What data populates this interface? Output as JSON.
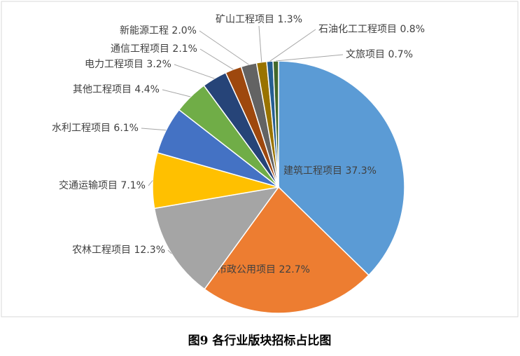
{
  "chart_data": {
    "type": "pie",
    "title": "图9 各行业版块招标占比图",
    "categories": [
      "建筑工程项目",
      "市政公用项目",
      "农林工程项目",
      "交通运输项目",
      "水利工程项目",
      "其他工程项目",
      "电力工程项目",
      "通信工程项目",
      "新能源工程",
      "矿山工程项目",
      "石油化工工程项目",
      "文旅项目"
    ],
    "values": [
      37.3,
      22.7,
      12.3,
      7.1,
      6.1,
      4.4,
      3.2,
      2.1,
      2.0,
      1.3,
      0.8,
      0.7
    ],
    "value_labels": [
      "37.3%",
      "22.7%",
      "12.3%",
      "7.1%",
      "6.1%",
      "4.4%",
      "3.2%",
      "2.1%",
      "2.0%",
      "1.3%",
      "0.8%",
      "0.7%"
    ],
    "colors": [
      "#5b9bd5",
      "#ed7d31",
      "#a5a5a5",
      "#ffc000",
      "#4472c4",
      "#70ad47",
      "#264478",
      "#9e480e",
      "#636363",
      "#997300",
      "#255e91",
      "#43682b"
    ]
  }
}
